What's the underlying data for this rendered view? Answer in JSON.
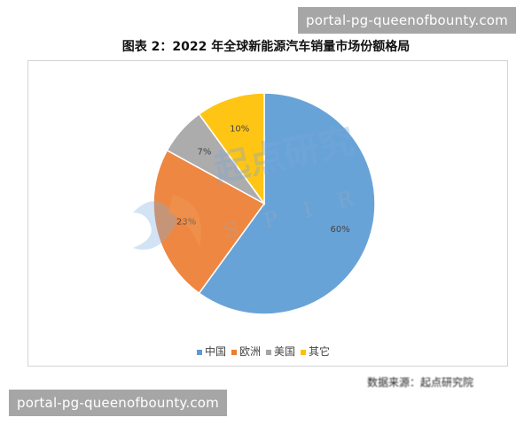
{
  "watermark_top": "portal-pg-queenofbounty.com",
  "watermark_bottom": "portal-pg-queenofbounty.com",
  "logo_text": "起点研究 SPIR",
  "source": "数据来源：起点研究院",
  "chart_data": {
    "type": "pie",
    "title": "图表 2：2022 年全球新能源汽车销量市场份额格局",
    "categories": [
      "中国",
      "欧洲",
      "美国",
      "其它"
    ],
    "values": [
      60,
      23,
      7,
      10
    ],
    "labels": [
      "60%",
      "23%",
      "7%",
      "10%"
    ],
    "colors": [
      "#5b9bd5",
      "#ed7d31",
      "#a5a5a5",
      "#ffc000"
    ],
    "start_angle": "12 o'clock, clockwise",
    "legend_position": "bottom"
  }
}
